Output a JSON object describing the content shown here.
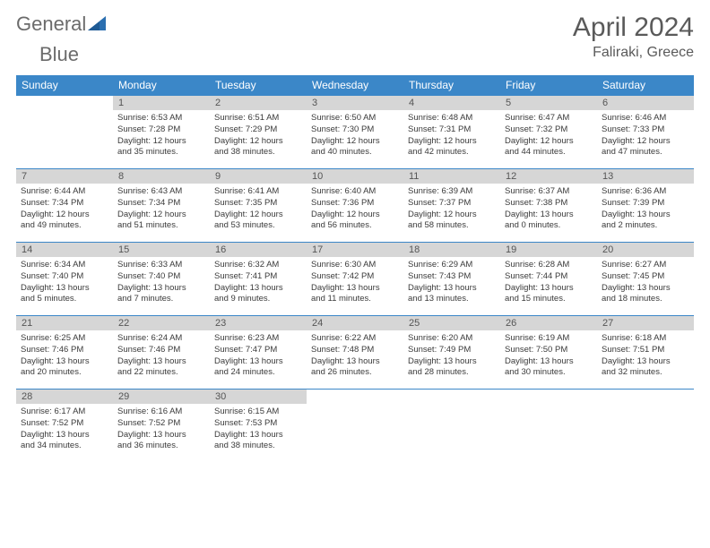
{
  "brand": {
    "word1": "General",
    "word2": "Blue"
  },
  "title": "April 2024",
  "location": "Faliraki, Greece",
  "colors": {
    "header_bg": "#3b87c8",
    "header_text": "#ffffff",
    "daynum_bg": "#d6d6d6",
    "text": "#3a3a3a",
    "logo_blue": "#2b6fb0"
  },
  "weekdays": [
    "Sunday",
    "Monday",
    "Tuesday",
    "Wednesday",
    "Thursday",
    "Friday",
    "Saturday"
  ],
  "weeks": [
    [
      {
        "n": "",
        "sr": "",
        "ss": "",
        "d1": "",
        "d2": "",
        "empty": true
      },
      {
        "n": "1",
        "sr": "Sunrise: 6:53 AM",
        "ss": "Sunset: 7:28 PM",
        "d1": "Daylight: 12 hours",
        "d2": "and 35 minutes."
      },
      {
        "n": "2",
        "sr": "Sunrise: 6:51 AM",
        "ss": "Sunset: 7:29 PM",
        "d1": "Daylight: 12 hours",
        "d2": "and 38 minutes."
      },
      {
        "n": "3",
        "sr": "Sunrise: 6:50 AM",
        "ss": "Sunset: 7:30 PM",
        "d1": "Daylight: 12 hours",
        "d2": "and 40 minutes."
      },
      {
        "n": "4",
        "sr": "Sunrise: 6:48 AM",
        "ss": "Sunset: 7:31 PM",
        "d1": "Daylight: 12 hours",
        "d2": "and 42 minutes."
      },
      {
        "n": "5",
        "sr": "Sunrise: 6:47 AM",
        "ss": "Sunset: 7:32 PM",
        "d1": "Daylight: 12 hours",
        "d2": "and 44 minutes."
      },
      {
        "n": "6",
        "sr": "Sunrise: 6:46 AM",
        "ss": "Sunset: 7:33 PM",
        "d1": "Daylight: 12 hours",
        "d2": "and 47 minutes."
      }
    ],
    [
      {
        "n": "7",
        "sr": "Sunrise: 6:44 AM",
        "ss": "Sunset: 7:34 PM",
        "d1": "Daylight: 12 hours",
        "d2": "and 49 minutes."
      },
      {
        "n": "8",
        "sr": "Sunrise: 6:43 AM",
        "ss": "Sunset: 7:34 PM",
        "d1": "Daylight: 12 hours",
        "d2": "and 51 minutes."
      },
      {
        "n": "9",
        "sr": "Sunrise: 6:41 AM",
        "ss": "Sunset: 7:35 PM",
        "d1": "Daylight: 12 hours",
        "d2": "and 53 minutes."
      },
      {
        "n": "10",
        "sr": "Sunrise: 6:40 AM",
        "ss": "Sunset: 7:36 PM",
        "d1": "Daylight: 12 hours",
        "d2": "and 56 minutes."
      },
      {
        "n": "11",
        "sr": "Sunrise: 6:39 AM",
        "ss": "Sunset: 7:37 PM",
        "d1": "Daylight: 12 hours",
        "d2": "and 58 minutes."
      },
      {
        "n": "12",
        "sr": "Sunrise: 6:37 AM",
        "ss": "Sunset: 7:38 PM",
        "d1": "Daylight: 13 hours",
        "d2": "and 0 minutes."
      },
      {
        "n": "13",
        "sr": "Sunrise: 6:36 AM",
        "ss": "Sunset: 7:39 PM",
        "d1": "Daylight: 13 hours",
        "d2": "and 2 minutes."
      }
    ],
    [
      {
        "n": "14",
        "sr": "Sunrise: 6:34 AM",
        "ss": "Sunset: 7:40 PM",
        "d1": "Daylight: 13 hours",
        "d2": "and 5 minutes."
      },
      {
        "n": "15",
        "sr": "Sunrise: 6:33 AM",
        "ss": "Sunset: 7:40 PM",
        "d1": "Daylight: 13 hours",
        "d2": "and 7 minutes."
      },
      {
        "n": "16",
        "sr": "Sunrise: 6:32 AM",
        "ss": "Sunset: 7:41 PM",
        "d1": "Daylight: 13 hours",
        "d2": "and 9 minutes."
      },
      {
        "n": "17",
        "sr": "Sunrise: 6:30 AM",
        "ss": "Sunset: 7:42 PM",
        "d1": "Daylight: 13 hours",
        "d2": "and 11 minutes."
      },
      {
        "n": "18",
        "sr": "Sunrise: 6:29 AM",
        "ss": "Sunset: 7:43 PM",
        "d1": "Daylight: 13 hours",
        "d2": "and 13 minutes."
      },
      {
        "n": "19",
        "sr": "Sunrise: 6:28 AM",
        "ss": "Sunset: 7:44 PM",
        "d1": "Daylight: 13 hours",
        "d2": "and 15 minutes."
      },
      {
        "n": "20",
        "sr": "Sunrise: 6:27 AM",
        "ss": "Sunset: 7:45 PM",
        "d1": "Daylight: 13 hours",
        "d2": "and 18 minutes."
      }
    ],
    [
      {
        "n": "21",
        "sr": "Sunrise: 6:25 AM",
        "ss": "Sunset: 7:46 PM",
        "d1": "Daylight: 13 hours",
        "d2": "and 20 minutes."
      },
      {
        "n": "22",
        "sr": "Sunrise: 6:24 AM",
        "ss": "Sunset: 7:46 PM",
        "d1": "Daylight: 13 hours",
        "d2": "and 22 minutes."
      },
      {
        "n": "23",
        "sr": "Sunrise: 6:23 AM",
        "ss": "Sunset: 7:47 PM",
        "d1": "Daylight: 13 hours",
        "d2": "and 24 minutes."
      },
      {
        "n": "24",
        "sr": "Sunrise: 6:22 AM",
        "ss": "Sunset: 7:48 PM",
        "d1": "Daylight: 13 hours",
        "d2": "and 26 minutes."
      },
      {
        "n": "25",
        "sr": "Sunrise: 6:20 AM",
        "ss": "Sunset: 7:49 PM",
        "d1": "Daylight: 13 hours",
        "d2": "and 28 minutes."
      },
      {
        "n": "26",
        "sr": "Sunrise: 6:19 AM",
        "ss": "Sunset: 7:50 PM",
        "d1": "Daylight: 13 hours",
        "d2": "and 30 minutes."
      },
      {
        "n": "27",
        "sr": "Sunrise: 6:18 AM",
        "ss": "Sunset: 7:51 PM",
        "d1": "Daylight: 13 hours",
        "d2": "and 32 minutes."
      }
    ],
    [
      {
        "n": "28",
        "sr": "Sunrise: 6:17 AM",
        "ss": "Sunset: 7:52 PM",
        "d1": "Daylight: 13 hours",
        "d2": "and 34 minutes."
      },
      {
        "n": "29",
        "sr": "Sunrise: 6:16 AM",
        "ss": "Sunset: 7:52 PM",
        "d1": "Daylight: 13 hours",
        "d2": "and 36 minutes."
      },
      {
        "n": "30",
        "sr": "Sunrise: 6:15 AM",
        "ss": "Sunset: 7:53 PM",
        "d1": "Daylight: 13 hours",
        "d2": "and 38 minutes."
      },
      {
        "n": "",
        "sr": "",
        "ss": "",
        "d1": "",
        "d2": "",
        "empty": true
      },
      {
        "n": "",
        "sr": "",
        "ss": "",
        "d1": "",
        "d2": "",
        "empty": true
      },
      {
        "n": "",
        "sr": "",
        "ss": "",
        "d1": "",
        "d2": "",
        "empty": true
      },
      {
        "n": "",
        "sr": "",
        "ss": "",
        "d1": "",
        "d2": "",
        "empty": true
      }
    ]
  ]
}
